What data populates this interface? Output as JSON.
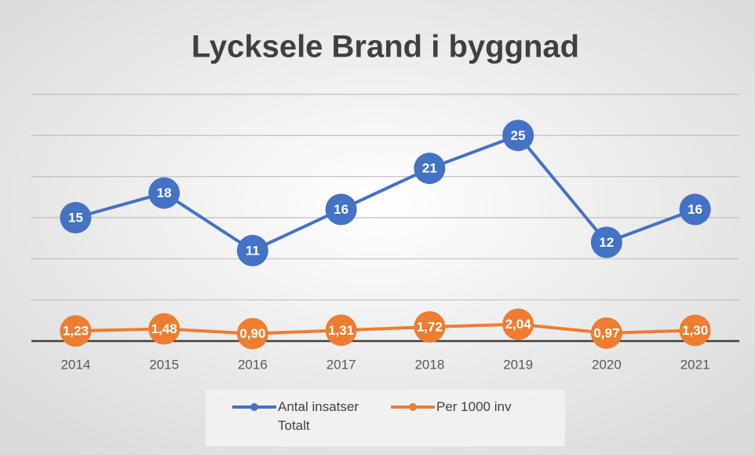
{
  "chart_data": {
    "type": "line",
    "title": "Lycksele Brand i byggnad",
    "categories": [
      "2014",
      "2015",
      "2016",
      "2017",
      "2018",
      "2019",
      "2020",
      "2021"
    ],
    "series": [
      {
        "name": "Antal insatser Totalt",
        "color": "#4472c4",
        "values": [
          15,
          18,
          11,
          16,
          21,
          25,
          12,
          16
        ]
      },
      {
        "name": "Per 1000 inv",
        "color": "#ed7d31",
        "values": [
          1.23,
          1.48,
          0.9,
          1.31,
          1.72,
          2.04,
          0.97,
          1.3
        ],
        "value_labels": [
          "1,23",
          "1,48",
          "0,90",
          "1,31",
          "1,72",
          "2,04",
          "0,97",
          "1,30"
        ]
      }
    ],
    "ylim": [
      0,
      30
    ],
    "yticks": [
      0,
      5,
      10,
      15,
      20,
      25,
      30
    ],
    "grid": true,
    "legend": "bottom"
  }
}
